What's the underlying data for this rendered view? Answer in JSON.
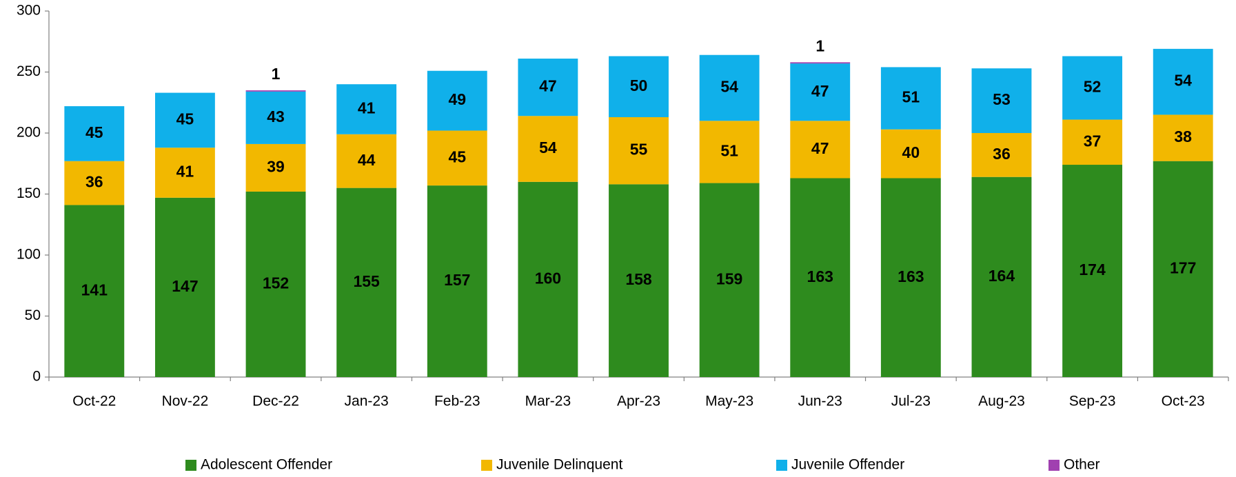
{
  "chart_data": {
    "type": "stacked_bar",
    "categories": [
      "Oct-22",
      "Nov-22",
      "Dec-22",
      "Jan-23",
      "Feb-23",
      "Mar-23",
      "Apr-23",
      "May-23",
      "Jun-23",
      "Jul-23",
      "Aug-23",
      "Sep-23",
      "Oct-23"
    ],
    "series": [
      {
        "name": "Adolescent Offender",
        "color": "#2e8b1e",
        "label_color": "#ffffff",
        "values": [
          141,
          147,
          152,
          155,
          157,
          160,
          158,
          159,
          163,
          163,
          164,
          174,
          177
        ]
      },
      {
        "name": "Juvenile Delinquent",
        "color": "#f2b800",
        "label_color": "#000000",
        "values": [
          36,
          41,
          39,
          44,
          45,
          54,
          55,
          51,
          47,
          40,
          36,
          37,
          38
        ]
      },
      {
        "name": "Juvenile Offender",
        "color": "#10b0ea",
        "label_color": "#ffffff",
        "values": [
          45,
          45,
          43,
          41,
          49,
          47,
          50,
          54,
          47,
          51,
          53,
          52,
          54
        ]
      },
      {
        "name": "Other",
        "color": "#a040b0",
        "label_color": "#000000",
        "values": [
          null,
          null,
          1,
          null,
          null,
          null,
          null,
          null,
          1,
          null,
          null,
          null,
          null
        ]
      }
    ],
    "ylim": [
      0,
      300
    ],
    "yticks": [
      0,
      50,
      100,
      150,
      200,
      250,
      300
    ],
    "legend": "bottom"
  }
}
